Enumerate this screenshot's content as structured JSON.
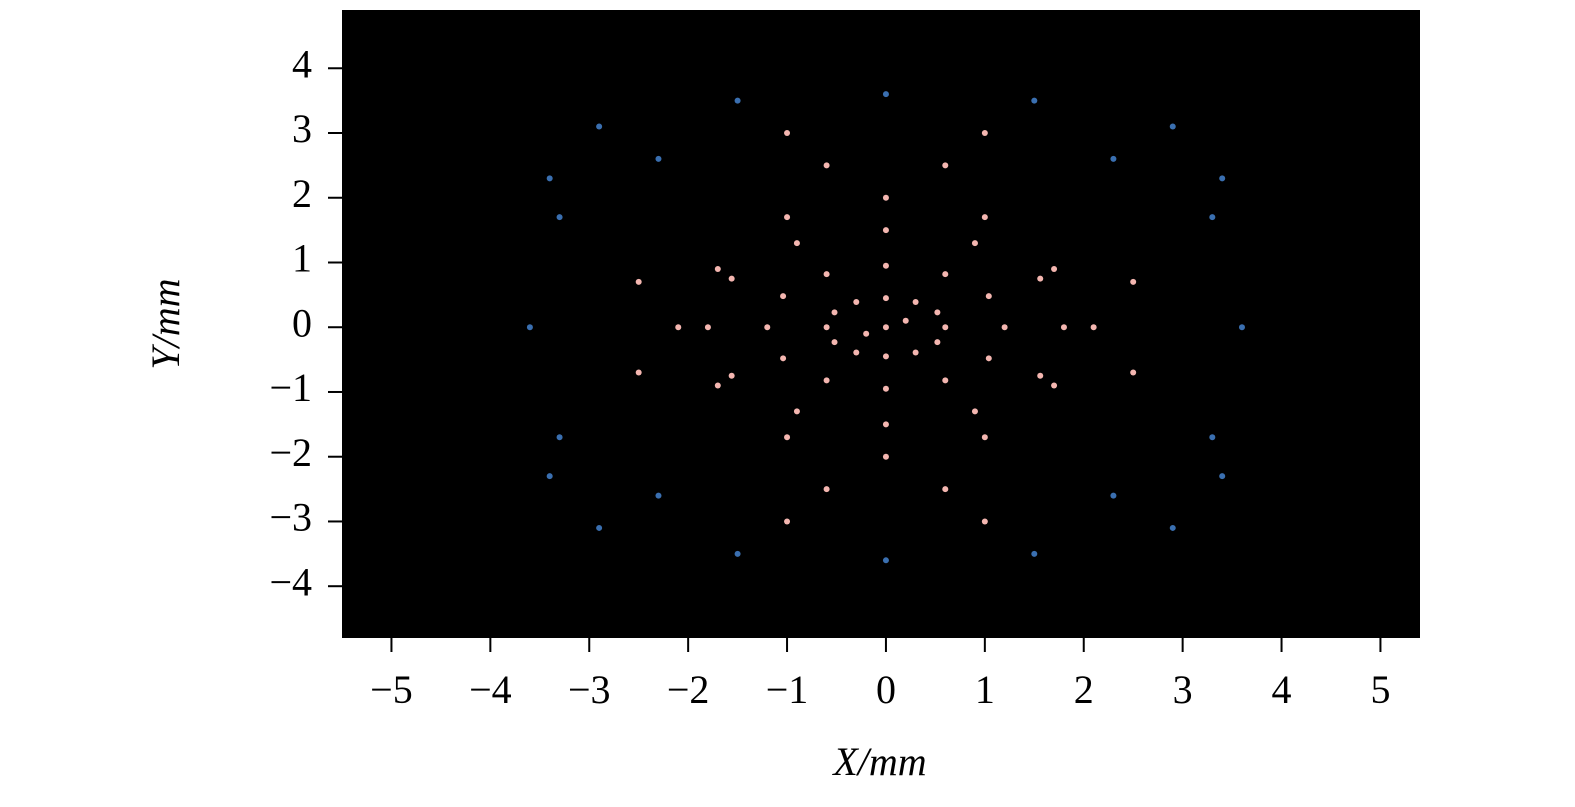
{
  "chart_data": {
    "type": "scatter",
    "x_label": "X/mm",
    "y_label": "Y/mm",
    "xlim": [
      -5.5,
      5.4
    ],
    "ylim": [
      -4.8,
      4.9
    ],
    "xticks": [
      {
        "value": -5,
        "label": "−5"
      },
      {
        "value": -4,
        "label": "−4"
      },
      {
        "value": -3,
        "label": "−3"
      },
      {
        "value": -2,
        "label": "−2"
      },
      {
        "value": -1,
        "label": "−1"
      },
      0,
      1,
      2,
      3,
      4,
      5
    ],
    "yticks": [
      {
        "value": -4,
        "label": "−4"
      },
      {
        "value": -3,
        "label": "−3"
      },
      {
        "value": -2,
        "label": "−2"
      },
      {
        "value": -1,
        "label": "−1"
      },
      0,
      1,
      2,
      3,
      4
    ],
    "background": "#000000",
    "series": [
      {
        "color": "#f4b6b0",
        "x": [
          0.6,
          0.52,
          0.3,
          0,
          -0.3,
          -0.52,
          -0.6,
          -0.52,
          -0.3,
          0,
          0.3,
          0.52,
          1.2,
          1.04,
          0.6,
          0,
          -0.6,
          -1.04,
          -1.2,
          -1.04,
          -0.6,
          0,
          0.6,
          1.04,
          1.8,
          1.56,
          0.9,
          0,
          -0.9,
          -1.56,
          -1.8,
          -1.56,
          -0.9,
          0,
          0.9,
          1.56,
          2.1,
          1.7,
          1.0,
          0,
          -1.0,
          -1.7,
          -2.1,
          -1.7,
          -1.0,
          0,
          1.0,
          1.7,
          0,
          0.2,
          -0.2,
          2.5,
          -2.5,
          2.5,
          -2.5,
          0.6,
          -0.6,
          0.6,
          -0.6,
          1,
          -1,
          1,
          -1
        ],
        "y": [
          0,
          0.23,
          0.39,
          0.45,
          0.39,
          0.23,
          0,
          -0.23,
          -0.39,
          -0.45,
          -0.39,
          -0.23,
          0,
          0.48,
          0.82,
          0.95,
          0.82,
          0.48,
          0,
          -0.48,
          -0.82,
          -0.95,
          -0.82,
          -0.48,
          0,
          0.75,
          1.3,
          1.5,
          1.3,
          0.75,
          0,
          -0.75,
          -1.3,
          -1.5,
          -1.3,
          -0.75,
          0,
          0.9,
          1.7,
          2.0,
          1.7,
          0.9,
          0,
          -0.9,
          -1.7,
          -2.0,
          -1.7,
          -0.9,
          0,
          0.1,
          -0.1,
          0.7,
          0.7,
          -0.7,
          -0.7,
          2.5,
          2.5,
          -2.5,
          -2.5,
          3,
          3,
          -3,
          -3
        ]
      },
      {
        "color": "#3a6fb0",
        "x": [
          0,
          0,
          3.6,
          -3.6,
          2.9,
          -2.9,
          2.9,
          -2.9,
          2.3,
          -2.3,
          2.3,
          -2.3,
          3.3,
          -3.3,
          3.3,
          -3.3,
          1.5,
          -1.5,
          1.5,
          -1.5,
          3.4,
          -3.4,
          3.4,
          -3.4
        ],
        "y": [
          3.6,
          -3.6,
          0,
          0,
          3.1,
          3.1,
          -3.1,
          -3.1,
          2.6,
          2.6,
          -2.6,
          -2.6,
          1.7,
          1.7,
          -1.7,
          -1.7,
          3.5,
          3.5,
          -3.5,
          -3.5,
          2.3,
          2.3,
          -2.3,
          -2.3
        ]
      }
    ]
  }
}
